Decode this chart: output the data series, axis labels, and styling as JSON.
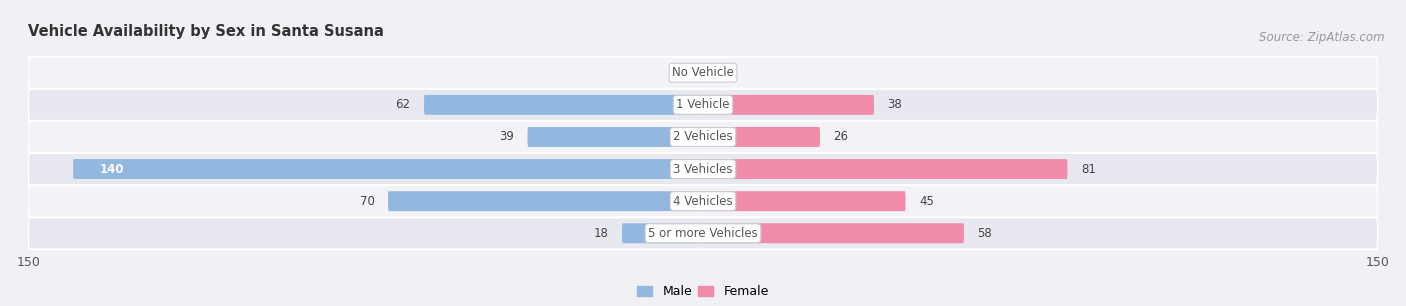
{
  "title": "Vehicle Availability by Sex in Santa Susana",
  "source": "Source: ZipAtlas.com",
  "categories": [
    "No Vehicle",
    "1 Vehicle",
    "2 Vehicles",
    "3 Vehicles",
    "4 Vehicles",
    "5 or more Vehicles"
  ],
  "male_values": [
    0,
    62,
    39,
    140,
    70,
    18
  ],
  "female_values": [
    0,
    38,
    26,
    81,
    45,
    58
  ],
  "male_color": "#92b8e0",
  "female_color": "#f08caa",
  "male_label": "Male",
  "female_label": "Female",
  "xlim": [
    -150,
    150
  ],
  "xtick_vals": [
    -150,
    150
  ],
  "bar_height": 0.62,
  "background_color": "#f0f0f5",
  "row_color_odd": "#e8e8f0",
  "row_color_even": "#f2f2f7",
  "title_fontsize": 10.5,
  "label_fontsize": 8.5,
  "axis_fontsize": 9,
  "source_fontsize": 8.5
}
